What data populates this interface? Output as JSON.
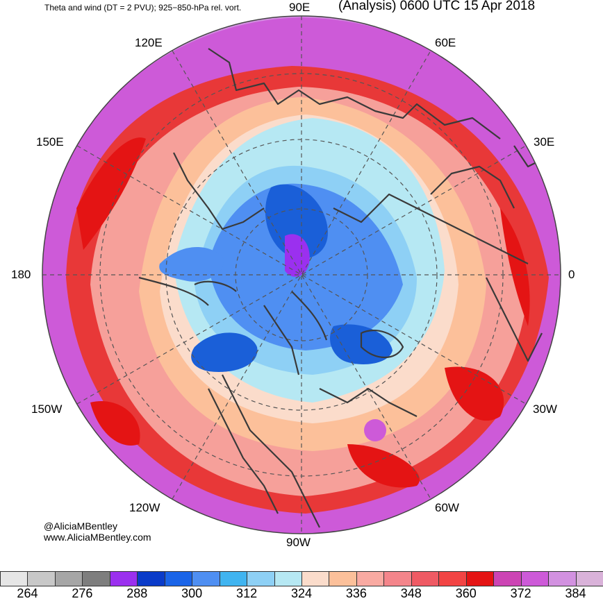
{
  "header": {
    "left_title": "Theta and wind (DT = 2 PVU); 925−850-hPa rel. vort.",
    "right_title": "(Analysis) 0600 UTC 15 Apr 2018"
  },
  "longitude_labels": [
    {
      "id": "90e",
      "text": "90E"
    },
    {
      "id": "60e",
      "text": "60E"
    },
    {
      "id": "120e",
      "text": "120E"
    },
    {
      "id": "30e",
      "text": "30E"
    },
    {
      "id": "150e",
      "text": "150E"
    },
    {
      "id": "180",
      "text": "180"
    },
    {
      "id": "0",
      "text": "0"
    },
    {
      "id": "150w",
      "text": "150W"
    },
    {
      "id": "30w",
      "text": "30W"
    },
    {
      "id": "120w",
      "text": "120W"
    },
    {
      "id": "60w",
      "text": "60W"
    },
    {
      "id": "90w",
      "text": "90W"
    }
  ],
  "credits": {
    "handle": "@AliciaMBentley",
    "website": "www.AliciaMBentley.com"
  },
  "colorbar": {
    "colors": [
      "#e6e6e6",
      "#c8c8c8",
      "#a6a6a6",
      "#7e7e7e",
      "#9b30ef",
      "#0a3bc9",
      "#1a64e8",
      "#4f8ff2",
      "#40b4f0",
      "#8ed0f5",
      "#b6e8f3",
      "#fbdccb",
      "#fcc09a",
      "#f9aaa2",
      "#f4858b",
      "#ef5a64",
      "#f24444",
      "#e41414",
      "#cc44b4",
      "#cd5ad8",
      "#d291e0",
      "#d9b2d9"
    ],
    "labels": [
      "264",
      "276",
      "288",
      "300",
      "312",
      "324",
      "336",
      "348",
      "360",
      "372",
      "384"
    ]
  },
  "colors": {
    "outer_band": "#cd5ad8",
    "red_band": "#ef4040",
    "salmon_band": "#f6a09a",
    "peach": "#fcc09a",
    "light_blue": "#b6e8f3",
    "mid_blue": "#4f8ff2",
    "deep_blue": "#1a5fd8",
    "purple": "#9b30ef"
  }
}
